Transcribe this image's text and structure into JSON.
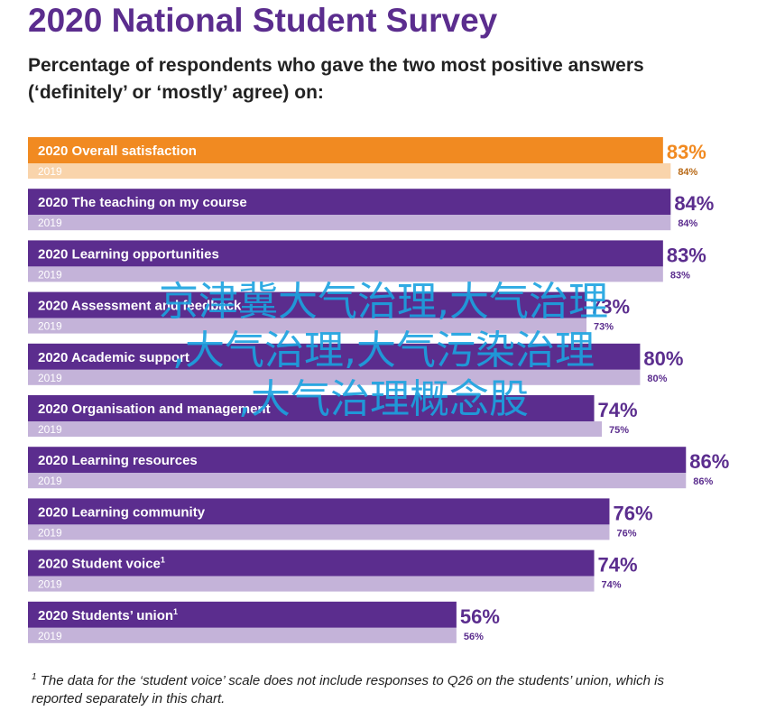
{
  "title": "2020 National Student Survey",
  "subtitle": "Percentage of respondents who gave the two most positive answers (‘definitely’ or ‘mostly’ agree) on:",
  "chart_data": {
    "type": "bar",
    "orientation": "horizontal",
    "xlim": [
      0,
      100
    ],
    "series_labels": [
      "2020",
      "2019"
    ],
    "categories": [
      {
        "label": "Overall satisfaction",
        "sup": "",
        "v2020": 83,
        "v2019": 84,
        "text2020": "83%",
        "text2019": "84%",
        "highlight": true
      },
      {
        "label": "The teaching on my course",
        "sup": "",
        "v2020": 84,
        "v2019": 84,
        "text2020": "84%",
        "text2019": "84%",
        "highlight": false
      },
      {
        "label": "Learning opportunities",
        "sup": "",
        "v2020": 83,
        "v2019": 83,
        "text2020": "83%",
        "text2019": "83%",
        "highlight": false
      },
      {
        "label": "Assessment and feedback",
        "sup": "",
        "v2020": 73,
        "v2019": 73,
        "text2020": "73%",
        "text2019": "73%",
        "highlight": false
      },
      {
        "label": "Academic support",
        "sup": "",
        "v2020": 80,
        "v2019": 80,
        "text2020": "80%",
        "text2019": "80%",
        "highlight": false
      },
      {
        "label": "Organisation and management",
        "sup": "",
        "v2020": 74,
        "v2019": 75,
        "text2020": "74%",
        "text2019": "75%",
        "highlight": false
      },
      {
        "label": "Learning resources",
        "sup": "",
        "v2020": 86,
        "v2019": 86,
        "text2020": "86%",
        "text2019": "86%",
        "highlight": false
      },
      {
        "label": "Learning community",
        "sup": "",
        "v2020": 76,
        "v2019": 76,
        "text2020": "76%",
        "text2019": "76%",
        "highlight": false
      },
      {
        "label": "Student voice",
        "sup": "1",
        "v2020": 74,
        "v2019": 74,
        "text2020": "74%",
        "text2019": "74%",
        "highlight": false
      },
      {
        "label": "Students’ union",
        "sup": "1",
        "v2020": 56,
        "v2019": 56,
        "text2020": "56%",
        "text2019": "56%",
        "highlight": false
      }
    ]
  },
  "colors": {
    "main": "#5b2d8e",
    "sub": "#c4b3d9",
    "highlight_main": "#f18a21",
    "highlight_sub": "#f9d4ab",
    "sub_text": "#5b2d8e",
    "highlight_sub_text": "#b86a18"
  },
  "overlay": {
    "lines": [
      "京津冀大气治理,大气治理",
      ",大气治理,大气污染治理",
      ",大气治理概念股"
    ]
  },
  "footnote": {
    "marker": "1",
    "text": " The data for the ‘student voice’ scale does not include responses to Q26 on the students’ union, which is reported separately in this chart."
  }
}
